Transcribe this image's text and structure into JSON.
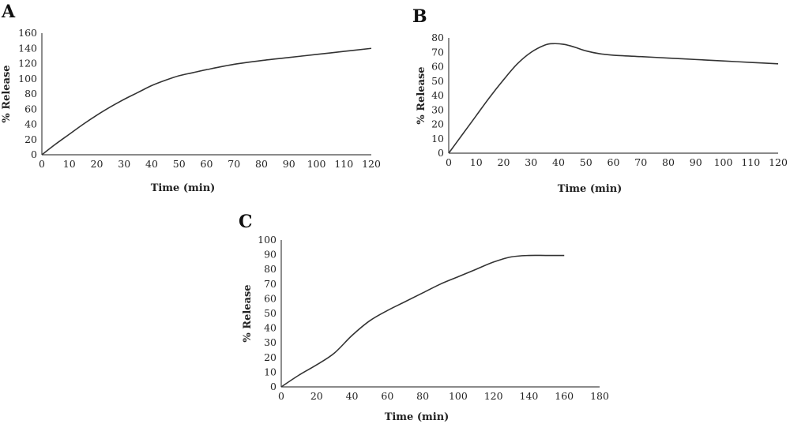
{
  "chart_data": [
    {
      "panel": "A",
      "type": "line",
      "xlabel": "Time (min)",
      "ylabel": "% Release",
      "xticks": [
        0,
        10,
        20,
        30,
        40,
        50,
        60,
        70,
        80,
        90,
        100,
        110,
        120
      ],
      "yticks": [
        0,
        20,
        40,
        60,
        80,
        100,
        120,
        140,
        160
      ],
      "xlim": [
        0,
        120
      ],
      "ylim": [
        0,
        160
      ],
      "series": [
        {
          "x": [
            0,
            5,
            10,
            15,
            20,
            25,
            30,
            35,
            40,
            45,
            50,
            55,
            60,
            70,
            80,
            90,
            100,
            110,
            120
          ],
          "y": [
            0,
            14,
            27,
            40,
            52,
            63,
            73,
            82,
            91,
            98,
            104,
            108,
            112,
            119,
            124,
            128,
            132,
            136,
            140
          ]
        }
      ]
    },
    {
      "panel": "B",
      "type": "line",
      "xlabel": "Time (min)",
      "ylabel": "% Release",
      "xticks": [
        0,
        10,
        20,
        30,
        40,
        50,
        60,
        70,
        80,
        90,
        100,
        110,
        120
      ],
      "yticks": [
        0,
        10,
        20,
        30,
        40,
        50,
        60,
        70,
        80
      ],
      "xlim": [
        0,
        120
      ],
      "ylim": [
        0,
        80
      ],
      "series": [
        {
          "x": [
            0,
            5,
            10,
            15,
            20,
            25,
            30,
            35,
            38,
            42,
            46,
            50,
            55,
            60,
            70,
            80,
            90,
            100,
            110,
            120
          ],
          "y": [
            0,
            13,
            26,
            39,
            51,
            62,
            70,
            75,
            76,
            75.5,
            73.5,
            71,
            69,
            68,
            67,
            66,
            65,
            64,
            63,
            62
          ]
        }
      ]
    },
    {
      "panel": "C",
      "type": "line",
      "xlabel": "Time (min)",
      "ylabel": "% Release",
      "xticks": [
        0,
        20,
        40,
        60,
        80,
        100,
        120,
        140,
        160,
        180
      ],
      "yticks": [
        0,
        10,
        20,
        30,
        40,
        50,
        60,
        70,
        80,
        90,
        100
      ],
      "xlim": [
        0,
        180
      ],
      "ylim": [
        0,
        100
      ],
      "series": [
        {
          "x": [
            0,
            10,
            20,
            30,
            40,
            50,
            60,
            70,
            80,
            90,
            100,
            110,
            120,
            130,
            140,
            150,
            160
          ],
          "y": [
            0,
            8,
            15,
            23,
            35,
            45,
            52,
            58,
            64,
            70,
            75,
            80,
            85,
            88.5,
            89.5,
            89.5,
            89.5
          ]
        }
      ]
    }
  ]
}
